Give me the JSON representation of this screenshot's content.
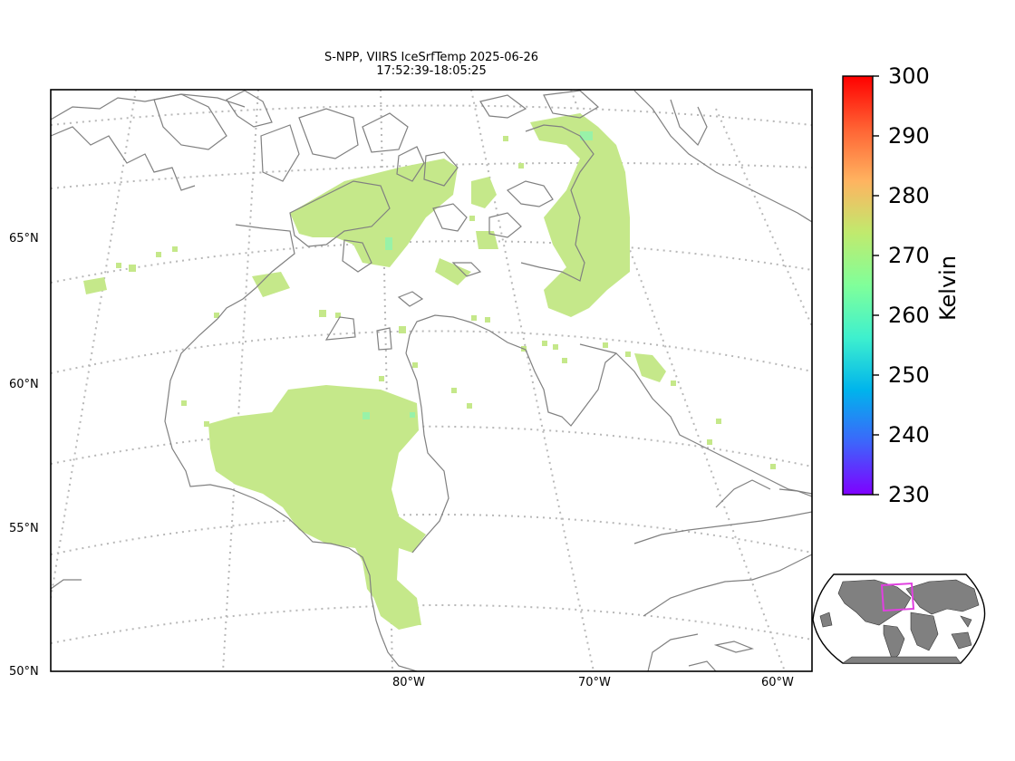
{
  "title_line1": "S-NPP, VIIRS IceSrfTemp 2025-06-26",
  "title_line2": "17:52:39-18:05:25",
  "latitude_labels": [
    "65°N",
    "60°N",
    "55°N",
    "50°N"
  ],
  "longitude_labels": [
    "80°W",
    "70°W",
    "60°W"
  ],
  "colorbar": {
    "label": "Kelvin",
    "ticks": [
      "300",
      "290",
      "280",
      "270",
      "260",
      "250",
      "240",
      "230"
    ],
    "min": 230,
    "max": 300,
    "colors": [
      "#7f00ff",
      "#3d65fb",
      "#00b4ec",
      "#3ef0ce",
      "#80ff9a",
      "#c0ea6e",
      "#ffb360",
      "#ff6233",
      "#ff0000"
    ]
  },
  "data_color": "#c5e88a",
  "inset": {
    "land_color": "#808080",
    "box_color": "#e040e0"
  }
}
